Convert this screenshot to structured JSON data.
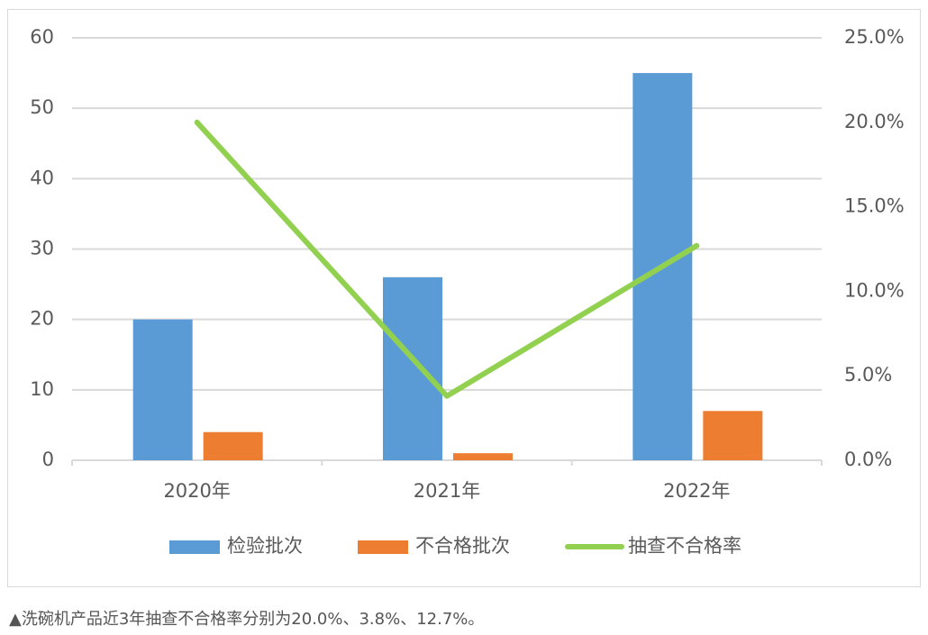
{
  "chart_data": {
    "type": "bar-line",
    "categories": [
      "2020年",
      "2021年",
      "2022年"
    ],
    "series": [
      {
        "name": "检验批次",
        "color": "#5b9bd5",
        "type": "bar",
        "values": [
          20,
          26,
          55
        ]
      },
      {
        "name": "不合格批次",
        "color": "#ed7d31",
        "type": "bar",
        "values": [
          4,
          1,
          7
        ]
      },
      {
        "name": "抽查不合格率",
        "color": "#92d050",
        "type": "line",
        "axis": "y2",
        "values": [
          20.0,
          3.8,
          12.7
        ]
      }
    ],
    "ylim": [
      0,
      60
    ],
    "yticks": [
      0,
      10,
      20,
      30,
      40,
      50,
      60
    ],
    "y2lim": [
      0,
      25
    ],
    "y2ticks": [
      {
        "value": 0,
        "label": "0.0%"
      },
      {
        "value": 5,
        "label": "5.0%"
      },
      {
        "value": 10,
        "label": "10.0%"
      },
      {
        "value": 15,
        "label": "15.0%"
      },
      {
        "value": 20,
        "label": "20.0%"
      },
      {
        "value": 25,
        "label": "25.0%"
      }
    ],
    "grid": true,
    "legend": "bottom"
  },
  "caption": "▲洗碗机产品近3年抽查不合格率分别为20.0%、3.8%、12.7%。"
}
